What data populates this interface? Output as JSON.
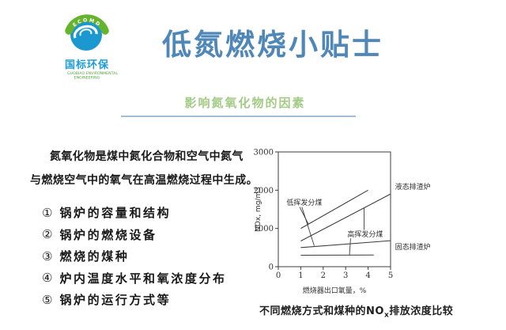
{
  "logo": {
    "arc_text": "ECOMD",
    "name_cn": "国标环保",
    "name_en_line1": "GUOBIAO ENVIRONMENTAL",
    "name_en_line2": "ENGINEERING",
    "colors": {
      "leaf_arc": "#66b42e",
      "globe": "#1b98cf",
      "cn_text": "#1e9cd7",
      "en_text": "#54a43e"
    }
  },
  "header": {
    "title": "低氮燃烧小贴士",
    "title_color": "#4e87b8",
    "subtitle": "影响氮氧化物的因素",
    "subtitle_color": "#a3cb86",
    "divider_color": "#a3bcd8"
  },
  "content": {
    "paragraph": {
      "bold_lead": "氮氧化物",
      "line1_rest": "是煤中氮化合物和空气中氮气",
      "line2": "与燃烧空气中的氧气在高温燃烧过程中生成。"
    },
    "list": [
      {
        "num": "①",
        "text": "锅炉的容量和结构"
      },
      {
        "num": "②",
        "text": "锅炉的燃烧设备"
      },
      {
        "num": "③",
        "text": "燃烧的煤种"
      },
      {
        "num": "④",
        "text": "炉内温度水平和氧浓度分布"
      },
      {
        "num": "⑤",
        "text": "锅炉的运行方式等"
      }
    ]
  },
  "chart_caption": {
    "part1": "不同燃烧方式和煤种的NO",
    "sub": "x",
    "part2": "排放浓度比较"
  },
  "chart_data": {
    "type": "line",
    "title": "不同燃烧方式和煤种的NOx排放浓度比较",
    "xlabel": "燃烧器出口氧量，%",
    "ylabel": "NOx, mg/m3",
    "xlim": [
      0,
      5
    ],
    "ylim": [
      0,
      3000
    ],
    "xticks": [
      0,
      1,
      2,
      3,
      4,
      5
    ],
    "yticks": [
      0,
      1000,
      2000,
      3000
    ],
    "grid": false,
    "legend_position": "right-outside",
    "line_color": "#3d3d3d",
    "series": [
      {
        "name": "液态排渣炉-低挥发分煤",
        "points": [
          [
            1,
            1000
          ],
          [
            4,
            2000
          ]
        ]
      },
      {
        "name": "液态排渣炉-高挥发分煤",
        "points": [
          [
            1,
            670
          ],
          [
            5,
            1900
          ]
        ]
      },
      {
        "name": "固态排渣炉-低挥发分煤",
        "points": [
          [
            1,
            500
          ],
          [
            5,
            680
          ]
        ]
      },
      {
        "name": "固态排渣炉-高挥发分煤",
        "points": [
          [
            1,
            300
          ],
          [
            4.25,
            305
          ]
        ]
      }
    ],
    "annotations": [
      {
        "text": "低挥发分煤",
        "x": 1.16,
        "y": 1680,
        "anchor": "middle"
      },
      {
        "text": "高挥发分煤",
        "x": 3.87,
        "y": 850,
        "anchor": "middle"
      },
      {
        "text": "液态排渣炉",
        "x": 5.2,
        "y": 2090,
        "anchor": "start"
      },
      {
        "text": "固态排渣炉",
        "x": 5.2,
        "y": 520,
        "anchor": "start"
      }
    ],
    "leaders": [
      [
        [
          0.95,
          1560
        ],
        [
          1.34,
          1115
        ]
      ],
      [
        [
          1.05,
          1560
        ],
        [
          1.6,
          545
        ]
      ],
      [
        [
          3.82,
          965
        ],
        [
          3.82,
          1535
        ]
      ],
      [
        [
          3.22,
          740
        ],
        [
          3.17,
          310
        ]
      ]
    ]
  }
}
